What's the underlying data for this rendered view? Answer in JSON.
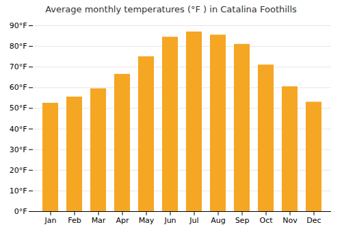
{
  "chart_data": {
    "type": "bar",
    "title": "Average monthly temperatures (°F ) in Catalina Foothills",
    "categories": [
      "Jan",
      "Feb",
      "Mar",
      "Apr",
      "May",
      "Jun",
      "Jul",
      "Aug",
      "Sep",
      "Oct",
      "Nov",
      "Dec"
    ],
    "values": [
      52.5,
      55.5,
      59.5,
      66.5,
      75.0,
      84.5,
      87.0,
      85.5,
      81.0,
      71.0,
      60.5,
      53.0
    ],
    "color": "#F5A623",
    "ylim": [
      0,
      90
    ],
    "yticks": [
      {
        "value": 0,
        "label": "0°F"
      },
      {
        "value": 10,
        "label": "10°F"
      },
      {
        "value": 20,
        "label": "20°F"
      },
      {
        "value": 30,
        "label": "30°F"
      },
      {
        "value": 40,
        "label": "40°F"
      },
      {
        "value": 50,
        "label": "50°F"
      },
      {
        "value": 60,
        "label": "60°F"
      },
      {
        "value": 70,
        "label": "70°F"
      },
      {
        "value": 80,
        "label": "80°F"
      },
      {
        "value": 90,
        "label": "90°F"
      }
    ],
    "grid": true
  }
}
